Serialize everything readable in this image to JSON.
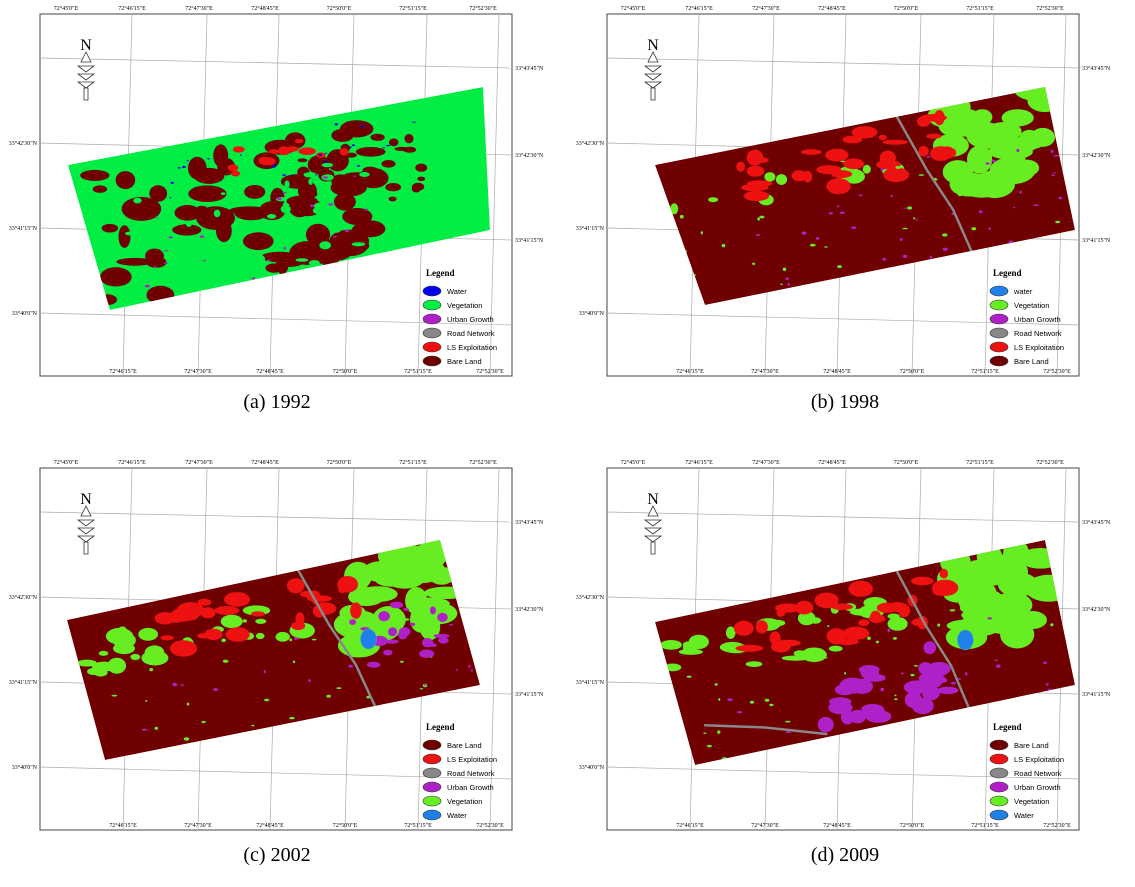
{
  "panels": [
    {
      "caption": "(a) 1992",
      "north_label": "N",
      "top_labels": [
        "72°45'0\"E",
        "72°46'15\"E",
        "72°47'30\"E",
        "72°48'45\"E",
        "72°50'0\"E",
        "72°51'15\"E",
        "72°52'30\"E"
      ],
      "bottom_labels": [
        "72°46'15\"E",
        "72°47'30\"E",
        "72°48'45\"E",
        "72°50'0\"E",
        "72°51'15\"E",
        "72°52'30\"E"
      ],
      "left_labels": [
        "33°42'30\"N",
        "33°41'15\"N",
        "33°40'0\"N"
      ],
      "right_labels": [
        "33°43'45\"N",
        "33°42'30\"N",
        "33°41'15\"N"
      ],
      "legend": {
        "title": "Legend",
        "items": [
          {
            "name": "Water",
            "color": "#0000ee"
          },
          {
            "name": "Vegetation",
            "color": "#00ee44"
          },
          {
            "name": "Urban Growth",
            "color": "#b020c8"
          },
          {
            "name": "Road Network",
            "color": "#888888"
          },
          {
            "name": "LS Exploitation",
            "color": "#ee1111"
          },
          {
            "name": "Bare Land",
            "color": "#700000"
          }
        ]
      }
    },
    {
      "caption": "(b) 1998",
      "north_label": "N",
      "top_labels": [
        "72°45'0\"E",
        "72°46'15\"E",
        "72°47'30\"E",
        "72°48'45\"E",
        "72°50'0\"E",
        "72°51'15\"E",
        "72°52'30\"E"
      ],
      "bottom_labels": [
        "72°46'15\"E",
        "72°47'30\"E",
        "72°48'45\"E",
        "72°50'0\"E",
        "72°51'15\"E",
        "72°52'30\"E"
      ],
      "left_labels": [
        "33°42'30\"N",
        "33°41'15\"N",
        "33°40'0\"N"
      ],
      "right_labels": [
        "33°43'45\"N",
        "33°42'30\"N",
        "33°41'15\"N"
      ],
      "legend": {
        "title": "Legend",
        "items": [
          {
            "name": "water",
            "color": "#1e80e8"
          },
          {
            "name": "Vegetation",
            "color": "#66ee22"
          },
          {
            "name": "Urban Growth",
            "color": "#b020c8"
          },
          {
            "name": "Road Network",
            "color": "#888888"
          },
          {
            "name": "LS Exploitation",
            "color": "#ee1111"
          },
          {
            "name": "Bare Land",
            "color": "#700000"
          }
        ]
      }
    },
    {
      "caption": "(c) 2002",
      "north_label": "N",
      "top_labels": [
        "72°45'0\"E",
        "72°46'15\"E",
        "72°47'30\"E",
        "72°48'45\"E",
        "72°50'0\"E",
        "72°51'15\"E",
        "72°52'30\"E"
      ],
      "bottom_labels": [
        "72°46'15\"E",
        "72°47'30\"E",
        "72°48'45\"E",
        "72°50'0\"E",
        "72°51'15\"E",
        "72°52'30\"E"
      ],
      "left_labels": [
        "33°42'30\"N",
        "33°41'15\"N",
        "33°40'0\"N"
      ],
      "right_labels": [
        "33°43'45\"N",
        "33°42'30\"N",
        "33°41'15\"N"
      ],
      "legend": {
        "title": "Legend",
        "items": [
          {
            "name": "Bare Land",
            "color": "#700000"
          },
          {
            "name": "LS Exploitation",
            "color": "#ee1111"
          },
          {
            "name": "Road Network",
            "color": "#888888"
          },
          {
            "name": "Urban Growth",
            "color": "#b020c8"
          },
          {
            "name": "Vegetation",
            "color": "#66ee22"
          },
          {
            "name": "Water",
            "color": "#1e80e8"
          }
        ]
      }
    },
    {
      "caption": "(d) 2009",
      "north_label": "N",
      "top_labels": [
        "72°45'0\"E",
        "72°46'15\"E",
        "72°47'30\"E",
        "72°48'45\"E",
        "72°50'0\"E",
        "72°51'15\"E",
        "72°52'30\"E"
      ],
      "bottom_labels": [
        "72°46'15\"E",
        "72°47'30\"E",
        "72°48'45\"E",
        "72°50'0\"E",
        "72°51'15\"E",
        "72°52'30\"E"
      ],
      "left_labels": [
        "33°42'30\"N",
        "33°41'15\"N",
        "33°40'0\"N"
      ],
      "right_labels": [
        "33°43'45\"N",
        "33°42'30\"N",
        "33°41'15\"N"
      ],
      "legend": {
        "title": "Legend",
        "items": [
          {
            "name": "Bare Land",
            "color": "#700000"
          },
          {
            "name": "LS Exploitation",
            "color": "#ee1111"
          },
          {
            "name": "Road Network",
            "color": "#888888"
          },
          {
            "name": "Urban Growth",
            "color": "#b020c8"
          },
          {
            "name": "Vegetation",
            "color": "#66ee22"
          },
          {
            "name": "Water",
            "color": "#1e80e8"
          }
        ]
      }
    }
  ]
}
